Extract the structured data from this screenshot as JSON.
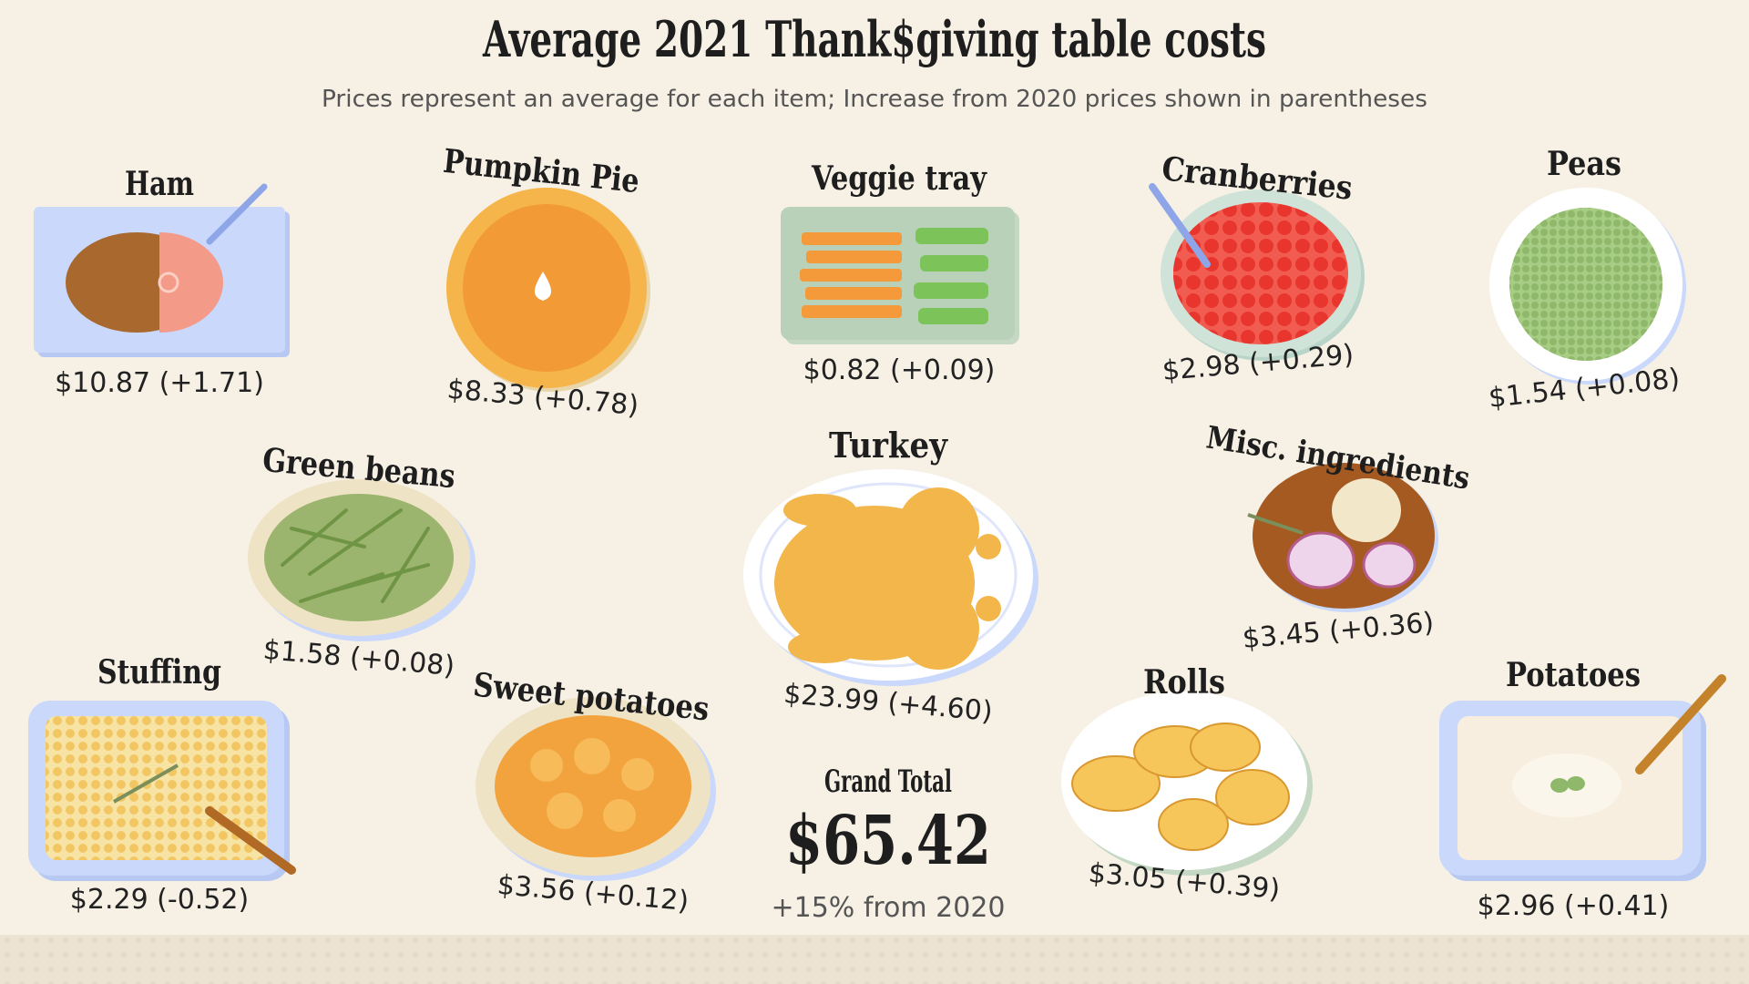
{
  "header": {
    "title": "Average 2021 Thank$giving table costs",
    "subtitle": "Prices represent an average for each item; Increase from 2020 prices shown in parentheses"
  },
  "items": [
    {
      "name": "Ham",
      "price": "$10.87 (+1.71)"
    },
    {
      "name": "Pumpkin Pie",
      "price": "$8.33 (+0.78)"
    },
    {
      "name": "Veggie tray",
      "price": "$0.82 (+0.09)"
    },
    {
      "name": "Cranberries",
      "price": "$2.98 (+0.29)"
    },
    {
      "name": "Peas",
      "price": "$1.54 (+0.08)"
    },
    {
      "name": "Green beans",
      "price": "$1.58 (+0.08)"
    },
    {
      "name": "Turkey",
      "price": "$23.99 (+4.60)"
    },
    {
      "name": "Misc. ingredients",
      "price": "$3.45 (+0.36)"
    },
    {
      "name": "Stuffing",
      "price": "$2.29 (-0.52)"
    },
    {
      "name": "Sweet potatoes",
      "price": "$3.56 (+0.12)"
    },
    {
      "name": "Rolls",
      "price": "$3.05 (+0.39)"
    },
    {
      "name": "Potatoes",
      "price": "$2.96 (+0.41)"
    }
  ],
  "total": {
    "label": "Grand Total",
    "value": "$65.42",
    "change": "+15% from 2020"
  }
}
